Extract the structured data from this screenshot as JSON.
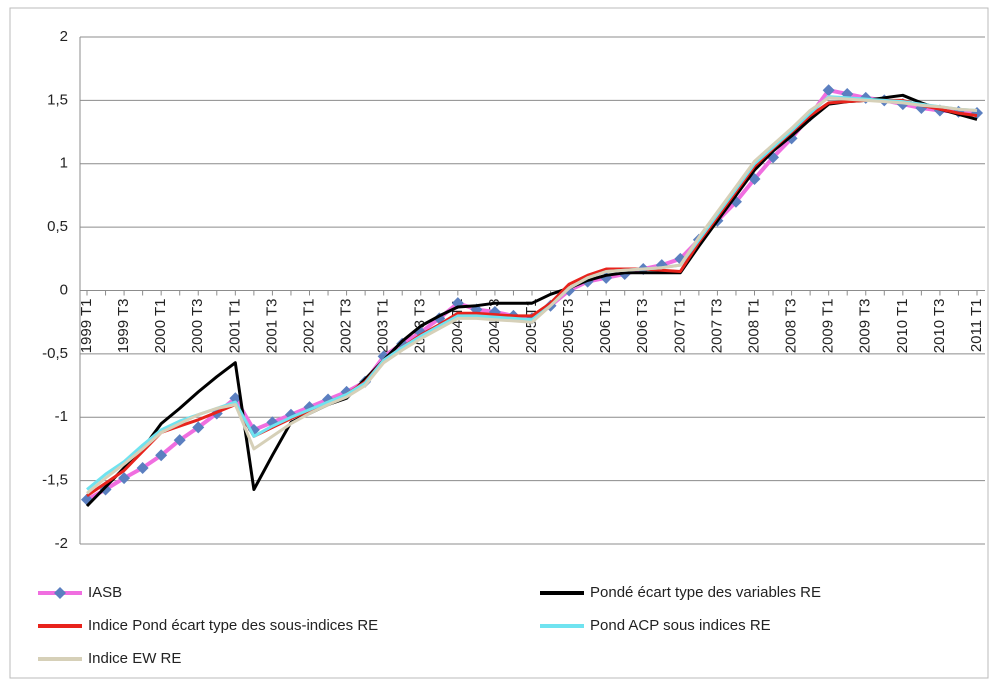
{
  "chart_data": {
    "type": "line",
    "categories": [
      "1999 T1",
      null,
      "1999 T3",
      null,
      "2000 T1",
      null,
      "2000 T3",
      null,
      "2001 T1",
      null,
      "2001 T3",
      null,
      "2002 T1",
      null,
      "2002 T3",
      null,
      "2003 T1",
      null,
      "2003 T3",
      null,
      "2004 T1",
      null,
      "2004 T3",
      null,
      "2005 T1",
      null,
      "2005 T3",
      null,
      "2006 T1",
      null,
      "2006 T3",
      null,
      "2007 T1",
      null,
      "2007 T3",
      null,
      "2008 T1",
      null,
      "2008 T3",
      null,
      "2009 T1",
      null,
      "2009 T3",
      null,
      "2010 T1",
      null,
      "2010 T3",
      null,
      "2011 T1"
    ],
    "series": [
      {
        "name": "IASB",
        "color": "#f06ee0",
        "marker_color": "#5b7fc0",
        "values": [
          -1.65,
          -1.57,
          -1.48,
          -1.4,
          -1.3,
          -1.18,
          -1.08,
          -0.97,
          -0.85,
          -1.1,
          -1.04,
          -0.98,
          -0.92,
          -0.86,
          -0.8,
          -0.72,
          -0.52,
          -0.42,
          -0.33,
          -0.22,
          -0.1,
          -0.15,
          -0.17,
          -0.2,
          -0.22,
          -0.12,
          0,
          0.07,
          0.1,
          0.13,
          0.17,
          0.2,
          0.25,
          0.4,
          0.55,
          0.7,
          0.88,
          1.05,
          1.2,
          1.38,
          1.58,
          1.55,
          1.52,
          1.5,
          1.47,
          1.44,
          1.42,
          1.41,
          1.4
        ]
      },
      {
        "name": "Pondé écart type des variables RE",
        "color": "#000000",
        "values": [
          -1.7,
          -1.55,
          -1.4,
          -1.25,
          -1.05,
          -0.93,
          -0.8,
          -0.68,
          -0.57,
          -1.57,
          -1.3,
          -1.04,
          -0.97,
          -0.9,
          -0.85,
          -0.7,
          -0.55,
          -0.4,
          -0.28,
          -0.2,
          -0.13,
          -0.12,
          -0.1,
          -0.1,
          -0.1,
          -0.03,
          0.02,
          0.08,
          0.12,
          0.14,
          0.14,
          0.14,
          0.14,
          0.35,
          0.55,
          0.75,
          0.95,
          1.1,
          1.22,
          1.35,
          1.47,
          1.49,
          1.5,
          1.52,
          1.54,
          1.48,
          1.43,
          1.39,
          1.35
        ]
      },
      {
        "name": "Indice Pond écart type des sous-indices RE",
        "color": "#e8231c",
        "values": [
          -1.62,
          -1.52,
          -1.42,
          -1.27,
          -1.12,
          -1.07,
          -1.02,
          -0.96,
          -0.9,
          -1.15,
          -1.08,
          -1.01,
          -0.95,
          -0.88,
          -0.82,
          -0.72,
          -0.55,
          -0.45,
          -0.35,
          -0.27,
          -0.18,
          -0.18,
          -0.19,
          -0.2,
          -0.2,
          -0.1,
          0.05,
          0.12,
          0.17,
          0.17,
          0.17,
          0.16,
          0.15,
          0.38,
          0.58,
          0.78,
          0.98,
          1.12,
          1.25,
          1.38,
          1.48,
          1.49,
          1.5,
          1.5,
          1.5,
          1.46,
          1.43,
          1.4,
          1.38
        ]
      },
      {
        "name": "Pond ACP  sous indices RE",
        "color": "#6fe3f0",
        "values": [
          -1.57,
          -1.45,
          -1.35,
          -1.22,
          -1.1,
          -1.03,
          -0.98,
          -0.93,
          -0.88,
          -1.15,
          -1.07,
          -1.0,
          -0.94,
          -0.88,
          -0.82,
          -0.73,
          -0.55,
          -0.45,
          -0.36,
          -0.28,
          -0.2,
          -0.2,
          -0.21,
          -0.22,
          -0.23,
          -0.12,
          0.02,
          0.1,
          0.15,
          0.16,
          0.17,
          0.18,
          0.2,
          0.4,
          0.6,
          0.8,
          1.0,
          1.13,
          1.26,
          1.4,
          1.53,
          1.52,
          1.51,
          1.5,
          1.49,
          1.47,
          1.45,
          1.43,
          1.42
        ]
      },
      {
        "name": "Indice EW RE",
        "color": "#d6d0b8",
        "values": [
          -1.6,
          -1.48,
          -1.37,
          -1.25,
          -1.12,
          -1.05,
          -0.98,
          -0.93,
          -0.9,
          -1.25,
          -1.15,
          -1.05,
          -0.97,
          -0.9,
          -0.84,
          -0.75,
          -0.57,
          -0.47,
          -0.38,
          -0.3,
          -0.22,
          -0.22,
          -0.23,
          -0.24,
          -0.25,
          -0.12,
          0.02,
          0.1,
          0.15,
          0.16,
          0.17,
          0.18,
          0.2,
          0.42,
          0.62,
          0.82,
          1.02,
          1.15,
          1.28,
          1.42,
          1.52,
          1.51,
          1.5,
          1.49,
          1.48,
          1.46,
          1.45,
          1.43,
          1.42
        ]
      }
    ],
    "ylim": [
      -2,
      2
    ],
    "yticks": [
      -2,
      {
        "value": -1.5,
        "label": "-1,5"
      },
      -1,
      {
        "value": -0.5,
        "label": "-0,5"
      },
      0,
      {
        "value": 0.5,
        "label": "0,5"
      },
      1,
      {
        "value": 1.5,
        "label": "1,5"
      },
      2
    ],
    "grid": true,
    "legend": "bottom"
  }
}
